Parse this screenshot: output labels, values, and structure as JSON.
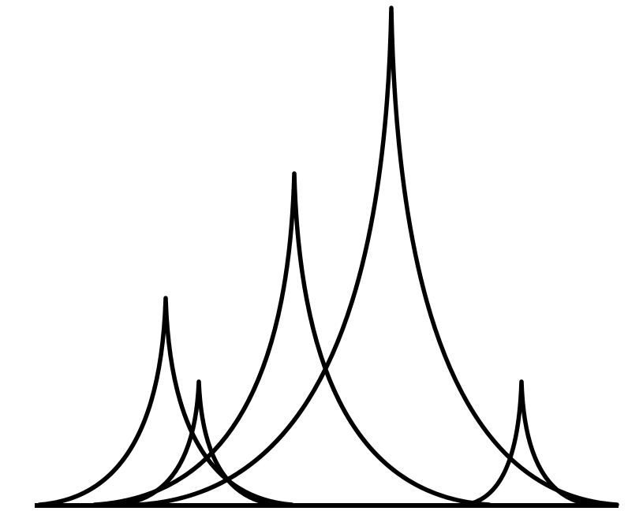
{
  "figure": {
    "kind": "cusp-shaped peaks on a shared baseline",
    "peak_count": 5,
    "peak_order_left_to_right": [
      "peak-1",
      "peak-2",
      "peak-3",
      "peak-4",
      "peak-5"
    ],
    "relative_peak_heights": {
      "peak-1": 0.42,
      "peak-2": 0.25,
      "peak-3": 0.67,
      "peak-4": 1.0,
      "peak-5": 0.25
    },
    "reference_line": {
      "present": true,
      "faded": true,
      "relative_height": 0.85
    }
  },
  "colors": {
    "background": "#ffffff",
    "curve": "#000000",
    "baseline": "#000000",
    "reference_line": "#d9d9d9"
  }
}
